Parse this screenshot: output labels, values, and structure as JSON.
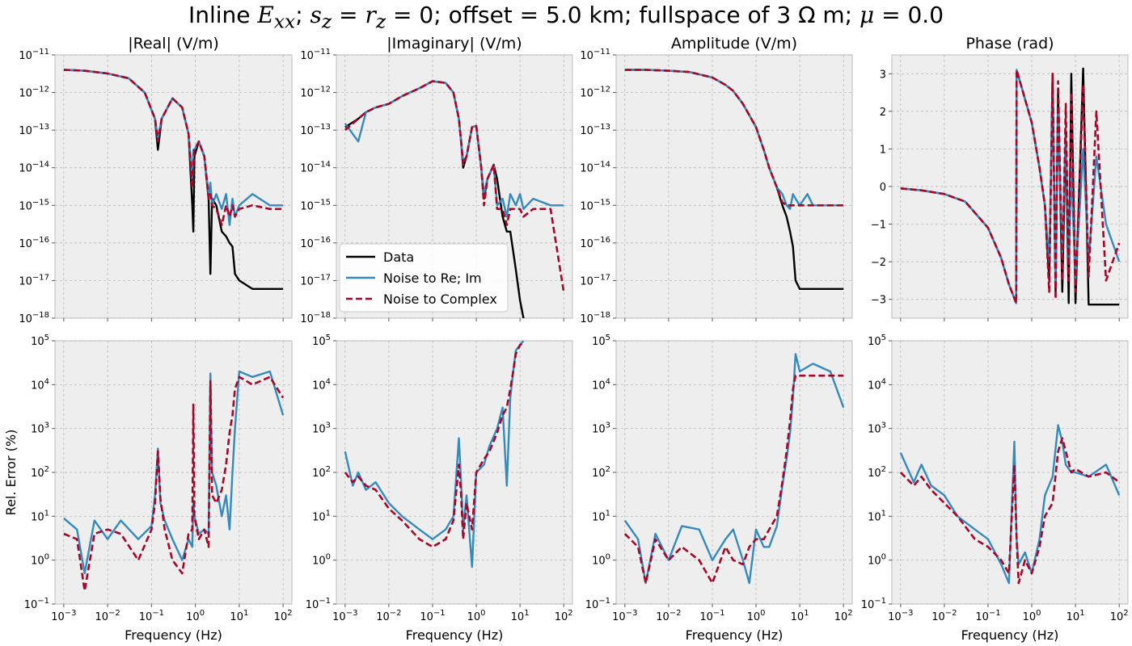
{
  "title_parts": [
    "Inline ",
    "E",
    "xx",
    "; ",
    "s",
    "z",
    " = ",
    "r",
    "z",
    " = 0; offset = 5.0 km; fullspace of 3 Ω m; ",
    "μ",
    " = 0.0"
  ],
  "colors": {
    "data": "#000000",
    "noise_reim": "#348ABD",
    "noise_complex": "#A60628",
    "panel_bg": "#EEEEEE",
    "grid": "#B0B0B0"
  },
  "chart_data": {
    "type": "line",
    "x_scale": "log",
    "xlim": [
      0.001,
      100
    ],
    "xlabel": "Frequency (Hz)",
    "xticks": [
      "10^-3",
      "10^-2",
      "10^-1",
      "10^0",
      "10^1",
      "10^2"
    ],
    "series_names": [
      "Data",
      "Noise to Re; Im",
      "Noise to Complex"
    ],
    "legend": {
      "location": "lower-left of |Imaginary| panel",
      "entries": [
        "Data",
        "Noise to Re; Im",
        "Noise to Complex"
      ]
    },
    "grid": true,
    "panels": [
      {
        "title": "|Real| (V/m)",
        "ylabel": "",
        "yscale": "log",
        "ylim": [
          1e-18,
          1e-11
        ],
        "yticks": [
          "10^-18",
          "10^-17",
          "10^-16",
          "10^-15",
          "10^-14",
          "10^-13",
          "10^-12",
          "10^-11"
        ],
        "x": [
          0.001,
          0.003,
          0.01,
          0.03,
          0.07,
          0.12,
          0.14,
          0.17,
          0.3,
          0.5,
          0.7,
          0.85,
          0.9,
          0.95,
          1.2,
          1.6,
          2.0,
          2.2,
          2.4,
          3,
          4,
          5,
          6,
          7,
          8,
          10,
          20,
          50,
          100
        ],
        "data": [
          4e-12,
          3.8e-12,
          3.2e-12,
          2.4e-12,
          1e-12,
          2e-13,
          3e-14,
          2e-13,
          7e-13,
          4e-13,
          8e-14,
          1e-15,
          2e-16,
          2e-14,
          5e-14,
          2e-14,
          1.5e-15,
          1.5e-17,
          1.5e-15,
          1e-15,
          2e-16,
          1.5e-16,
          1e-16,
          8e-17,
          1.5e-17,
          1e-17,
          6e-18,
          6e-18,
          6e-18
        ],
        "noise_reim": [
          4e-12,
          3.8e-12,
          3.2e-12,
          2.4e-12,
          1e-12,
          2e-13,
          6e-14,
          2e-13,
          7e-13,
          4e-13,
          8e-14,
          5e-15,
          3e-14,
          3e-14,
          5e-14,
          2e-14,
          2e-15,
          4e-15,
          1e-15,
          2e-15,
          8e-16,
          2e-15,
          3e-16,
          1.5e-15,
          5e-16,
          1e-15,
          2e-15,
          1e-15,
          1e-15
        ],
        "noise_complex": [
          4e-12,
          3.8e-12,
          3.2e-12,
          2.4e-12,
          1e-12,
          2e-13,
          5e-14,
          2e-13,
          7e-13,
          4e-13,
          8e-14,
          3e-15,
          1e-14,
          3e-14,
          5e-14,
          2e-14,
          1.5e-15,
          2e-15,
          1e-15,
          8e-16,
          3e-16,
          1e-15,
          5e-16,
          1e-15,
          5e-16,
          8e-16,
          1e-15,
          8e-16,
          8e-16
        ]
      },
      {
        "title": "|Imaginary| (V/m)",
        "ylabel": "",
        "yscale": "log",
        "ylim": [
          1e-18,
          1e-11
        ],
        "yticks": [
          "10^-18",
          "10^-17",
          "10^-16",
          "10^-15",
          "10^-14",
          "10^-13",
          "10^-12",
          "10^-11"
        ],
        "x": [
          0.001,
          0.002,
          0.003,
          0.005,
          0.01,
          0.02,
          0.05,
          0.1,
          0.2,
          0.3,
          0.4,
          0.45,
          0.5,
          0.6,
          0.8,
          1.0,
          1.3,
          1.5,
          1.8,
          2.5,
          3,
          4,
          5,
          6,
          8,
          10,
          12,
          20,
          50,
          100
        ],
        "data": [
          1.2e-13,
          2e-13,
          3e-13,
          4e-13,
          5e-13,
          8e-13,
          1.3e-12,
          2e-12,
          1.8e-12,
          1e-12,
          2e-13,
          5e-14,
          1e-14,
          2e-14,
          1.2e-13,
          1.3e-13,
          1e-14,
          1.5e-15,
          5e-15,
          1.2e-14,
          5e-15,
          5e-16,
          2e-16,
          2e-16,
          2e-17,
          3e-18,
          1e-18,
          5e-19,
          5e-19,
          5e-19
        ],
        "noise_reim": [
          1.5e-13,
          5e-14,
          3e-13,
          4e-13,
          5e-13,
          8e-13,
          1.3e-12,
          2e-12,
          1.8e-12,
          1e-12,
          2e-13,
          5e-14,
          1.5e-14,
          2e-14,
          1.2e-13,
          1.3e-13,
          1e-14,
          2e-15,
          5e-15,
          1.2e-14,
          1e-15,
          1.5e-15,
          5e-16,
          2e-15,
          1e-15,
          2e-15,
          8e-16,
          1.5e-15,
          1e-15,
          1e-15
        ],
        "noise_complex": [
          1e-13,
          2e-13,
          3e-13,
          4e-13,
          5e-13,
          8e-13,
          1.3e-12,
          2e-12,
          1.8e-12,
          1e-12,
          2e-13,
          5e-14,
          1.2e-14,
          2e-14,
          1.2e-13,
          1.3e-13,
          1e-14,
          1e-15,
          5e-15,
          1.2e-14,
          8e-16,
          8e-16,
          3e-16,
          8e-16,
          8e-16,
          8e-16,
          5e-16,
          8e-16,
          8e-16,
          5e-18
        ]
      },
      {
        "title": "Amplitude (V/m)",
        "ylabel": "",
        "yscale": "log",
        "ylim": [
          1e-18,
          1e-11
        ],
        "yticks": [
          "10^-18",
          "10^-17",
          "10^-16",
          "10^-15",
          "10^-14",
          "10^-13",
          "10^-12",
          "10^-11"
        ],
        "x": [
          0.001,
          0.003,
          0.01,
          0.03,
          0.1,
          0.2,
          0.3,
          0.5,
          0.7,
          1.0,
          1.5,
          2.0,
          3.0,
          4.0,
          5.0,
          6.0,
          7.0,
          8.0,
          10,
          15,
          20,
          50,
          100
        ],
        "data": [
          4e-12,
          4e-12,
          3.8e-12,
          3.5e-12,
          2.5e-12,
          1.6e-12,
          1.1e-12,
          5e-13,
          2.5e-13,
          1.2e-13,
          3e-14,
          1e-14,
          3e-15,
          1e-15,
          5e-16,
          2e-16,
          8e-17,
          1e-17,
          6e-18,
          6e-18,
          6e-18,
          6e-18,
          6e-18
        ],
        "noise_reim": [
          4e-12,
          4e-12,
          3.8e-12,
          3.5e-12,
          2.5e-12,
          1.6e-12,
          1.1e-12,
          5e-13,
          2.5e-13,
          1.2e-13,
          3e-14,
          1e-14,
          3e-15,
          2e-15,
          1e-15,
          8e-16,
          2e-15,
          1.5e-15,
          1e-15,
          2e-15,
          1e-15,
          1e-15,
          1e-15
        ],
        "noise_complex": [
          4e-12,
          4e-12,
          3.8e-12,
          3.5e-12,
          2.5e-12,
          1.6e-12,
          1.1e-12,
          5e-13,
          2.5e-13,
          1.2e-13,
          3e-14,
          1e-14,
          3e-15,
          1.2e-15,
          1e-15,
          1e-15,
          1e-15,
          1e-15,
          1e-15,
          1e-15,
          1e-15,
          1e-15,
          1e-15
        ]
      },
      {
        "title": "Phase (rad)",
        "ylabel": "",
        "yscale": "linear",
        "ylim": [
          -3.5,
          3.5
        ],
        "yticks": [
          "−3",
          "−2",
          "−1",
          "0",
          "1",
          "2",
          "3"
        ],
        "x": [
          0.001,
          0.003,
          0.01,
          0.03,
          0.1,
          0.2,
          0.3,
          0.44,
          0.45,
          0.6,
          1.0,
          1.5,
          2.0,
          2.5,
          3.0,
          3.5,
          4.0,
          5.0,
          6.0,
          7.0,
          8.0,
          10,
          15,
          20,
          30,
          50,
          100
        ],
        "data": [
          -0.05,
          -0.1,
          -0.2,
          -0.4,
          -1.1,
          -1.9,
          -2.6,
          -3.1,
          3.1,
          2.6,
          1.7,
          0.5,
          -0.5,
          -2.5,
          3.0,
          -2.8,
          2.5,
          -2.8,
          1.5,
          -3.1,
          3.0,
          -3.1,
          3.14,
          -3.14,
          -3.14,
          -3.14,
          -3.14
        ],
        "noise_reim": [
          -0.05,
          -0.1,
          -0.2,
          -0.4,
          -1.1,
          -1.9,
          -2.6,
          -3.1,
          3.1,
          2.6,
          1.7,
          0.5,
          -0.5,
          -2.0,
          2.5,
          -2.5,
          2.0,
          -1.8,
          1.5,
          -2.0,
          0.5,
          -2.5,
          1.0,
          -2.0,
          0.8,
          -1.0,
          -2.0
        ],
        "noise_complex": [
          -0.05,
          -0.1,
          -0.2,
          -0.4,
          -1.1,
          -1.9,
          -2.6,
          -3.1,
          3.1,
          2.6,
          1.7,
          0.5,
          -0.5,
          -2.8,
          3.0,
          -3.0,
          2.8,
          -2.5,
          2.2,
          -2.5,
          2.5,
          -2.8,
          2.7,
          -2.4,
          2.0,
          -2.5,
          -1.5
        ]
      },
      {
        "title": "",
        "ylabel": "Rel. Error (%)",
        "yscale": "log",
        "ylim": [
          0.1,
          100000
        ],
        "yticks": [
          "10^-1",
          "10^0",
          "10^1",
          "10^2",
          "10^3",
          "10^4",
          "10^5"
        ],
        "x": [
          0.001,
          0.002,
          0.003,
          0.005,
          0.01,
          0.02,
          0.05,
          0.1,
          0.12,
          0.14,
          0.16,
          0.2,
          0.3,
          0.5,
          0.7,
          0.85,
          0.9,
          0.95,
          1.2,
          1.6,
          2.0,
          2.2,
          2.4,
          3,
          4,
          5,
          6,
          7,
          8,
          10,
          20,
          50,
          100
        ],
        "noise_reim": [
          9,
          5,
          0.5,
          8,
          3,
          8,
          3,
          6,
          30,
          350,
          20,
          8,
          3,
          1,
          3,
          2,
          20,
          10,
          4,
          5,
          4,
          18000,
          100,
          50,
          10,
          30,
          5,
          100,
          1000,
          20000,
          15000,
          20000,
          2000
        ],
        "noise_complex": [
          4,
          3,
          0.2,
          4,
          5,
          4,
          1,
          5,
          20,
          300,
          25,
          5,
          1,
          0.5,
          4,
          5,
          3500,
          10,
          3,
          5,
          2,
          12000,
          30,
          20,
          40,
          150,
          800,
          2000,
          8000,
          15000,
          10000,
          15000,
          5000
        ]
      },
      {
        "title": "",
        "ylabel": "",
        "yscale": "log",
        "ylim": [
          0.1,
          100000
        ],
        "yticks": [
          "10^-1",
          "10^0",
          "10^1",
          "10^2",
          "10^3",
          "10^4",
          "10^5"
        ],
        "x": [
          0.001,
          0.0015,
          0.002,
          0.003,
          0.005,
          0.01,
          0.02,
          0.05,
          0.1,
          0.2,
          0.3,
          0.4,
          0.45,
          0.5,
          0.6,
          0.8,
          1.0,
          1.5,
          2.0,
          3.0,
          4.0,
          5.0,
          6.0,
          7.0,
          8.0,
          10,
          12
        ],
        "noise_reim": [
          300,
          50,
          100,
          40,
          60,
          20,
          10,
          5,
          3,
          5,
          10,
          600,
          60,
          5,
          30,
          0.7,
          100,
          150,
          400,
          1000,
          3000,
          50,
          5000,
          20000,
          60000,
          80000,
          100000
        ],
        "noise_complex": [
          100,
          60,
          80,
          50,
          40,
          15,
          8,
          3,
          2,
          3,
          8,
          150,
          30,
          3,
          20,
          5,
          100,
          200,
          300,
          800,
          2000,
          3000,
          8000,
          20000,
          50000,
          80000,
          90000
        ]
      },
      {
        "title": "",
        "ylabel": "",
        "yscale": "log",
        "ylim": [
          0.1,
          100000
        ],
        "yticks": [
          "10^-1",
          "10^0",
          "10^1",
          "10^2",
          "10^3",
          "10^4",
          "10^5"
        ],
        "x": [
          0.001,
          0.002,
          0.003,
          0.005,
          0.01,
          0.02,
          0.05,
          0.1,
          0.2,
          0.3,
          0.5,
          0.7,
          1.0,
          1.5,
          2.0,
          3.0,
          4.0,
          5.0,
          6.0,
          7.0,
          8.0,
          10,
          20,
          50,
          100
        ],
        "noise_reim": [
          8,
          3,
          0.3,
          4,
          1,
          6,
          5,
          1,
          3,
          5,
          1,
          0.3,
          5,
          2,
          2,
          6,
          50,
          200,
          800,
          5000,
          50000,
          20000,
          30000,
          20000,
          3000
        ],
        "noise_complex": [
          4,
          2,
          0.3,
          3,
          1,
          2,
          1,
          0.3,
          2,
          1,
          0.8,
          2,
          3,
          3,
          5,
          10,
          60,
          300,
          1500,
          8000,
          16000,
          16000,
          16000,
          16000,
          16000
        ]
      },
      {
        "title": "",
        "ylabel": "",
        "yscale": "log",
        "ylim": [
          0.1,
          100000
        ],
        "yticks": [
          "10^-1",
          "10^0",
          "10^1",
          "10^2",
          "10^3",
          "10^4",
          "10^5"
        ],
        "x": [
          0.001,
          0.002,
          0.003,
          0.005,
          0.01,
          0.02,
          0.05,
          0.1,
          0.2,
          0.3,
          0.4,
          0.45,
          0.5,
          0.7,
          1.0,
          1.5,
          2.0,
          3.0,
          4.0,
          5.0,
          6.0,
          8.0,
          10,
          20,
          50,
          100
        ],
        "noise_reim": [
          280,
          60,
          150,
          50,
          30,
          10,
          5,
          3,
          0.8,
          0.3,
          500,
          3,
          0.8,
          1.5,
          0.5,
          3,
          30,
          80,
          1200,
          500,
          150,
          100,
          100,
          80,
          150,
          30
        ],
        "noise_complex": [
          100,
          50,
          80,
          40,
          20,
          10,
          3,
          2,
          1,
          0.5,
          150,
          3,
          0.3,
          1,
          0.5,
          2,
          10,
          20,
          300,
          600,
          300,
          100,
          120,
          80,
          100,
          60
        ]
      }
    ]
  }
}
